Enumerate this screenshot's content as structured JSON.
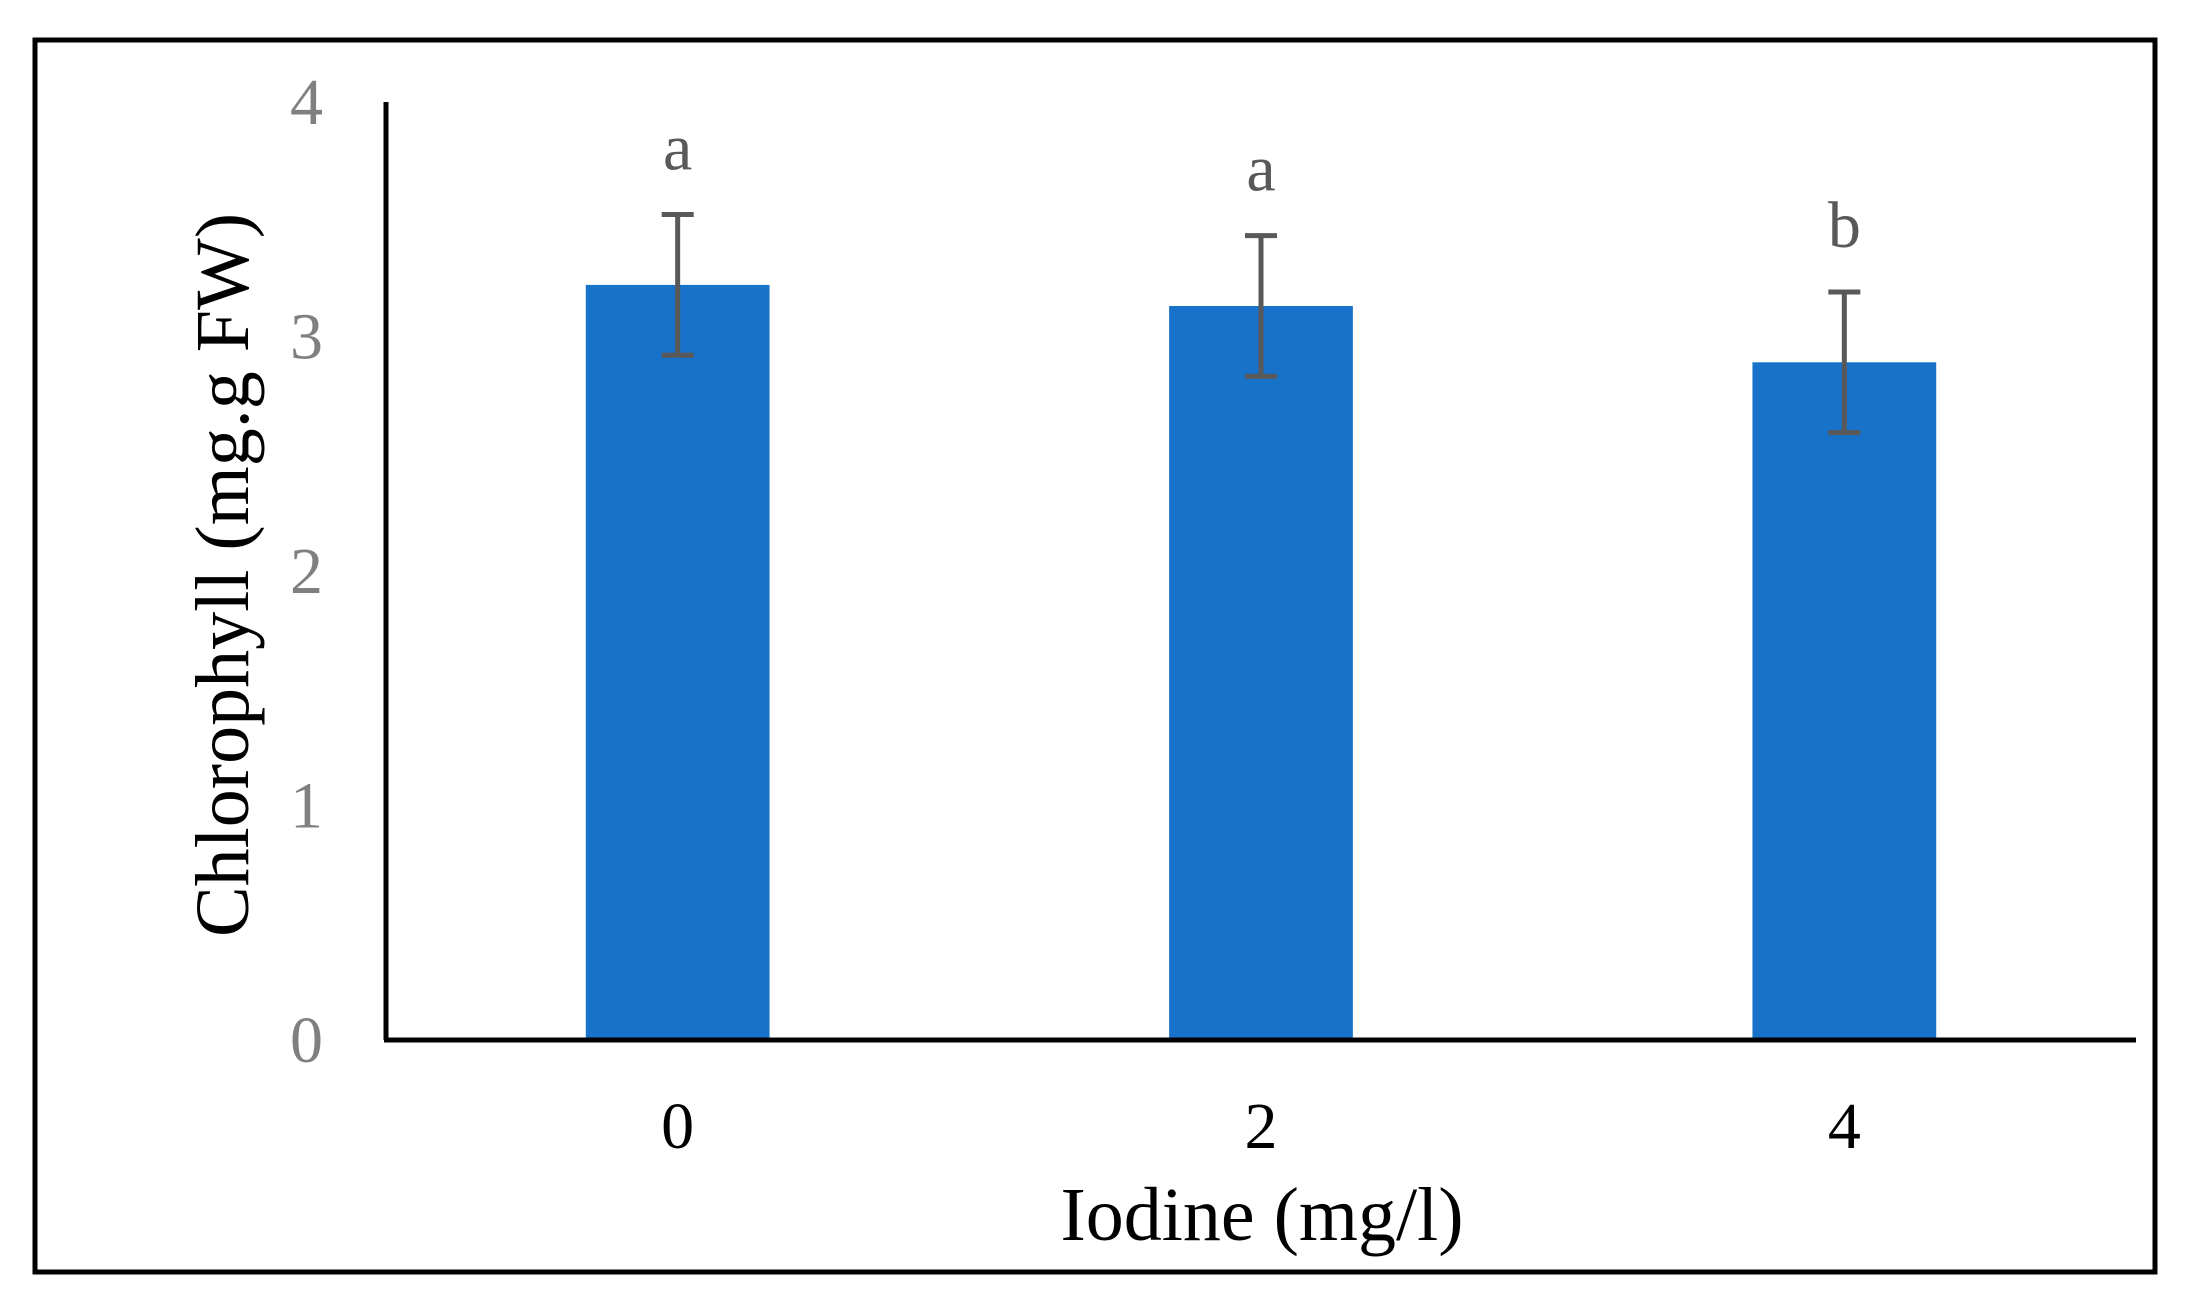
{
  "chart_data": {
    "type": "bar",
    "title": "",
    "xlabel": "Iodine (mg/l)",
    "ylabel": "Chlorophyll (mg.g FW)",
    "categories": [
      "0",
      "2",
      "4"
    ],
    "series": [
      {
        "values": [
          3.22,
          3.13,
          2.89
        ],
        "error": [
          0.3,
          0.3,
          0.3
        ],
        "significance_letters": [
          "a",
          "a",
          "b"
        ]
      }
    ],
    "ylim": [
      0,
      4
    ],
    "yticks": [
      "0",
      "1",
      "2",
      "3",
      "4"
    ],
    "grid": false,
    "legend": "none",
    "colors": {
      "bar": "#1872C9",
      "error_bar": "#595959",
      "axis": "#000000",
      "tick_label_y": "#808080",
      "frame": "#000000"
    }
  }
}
